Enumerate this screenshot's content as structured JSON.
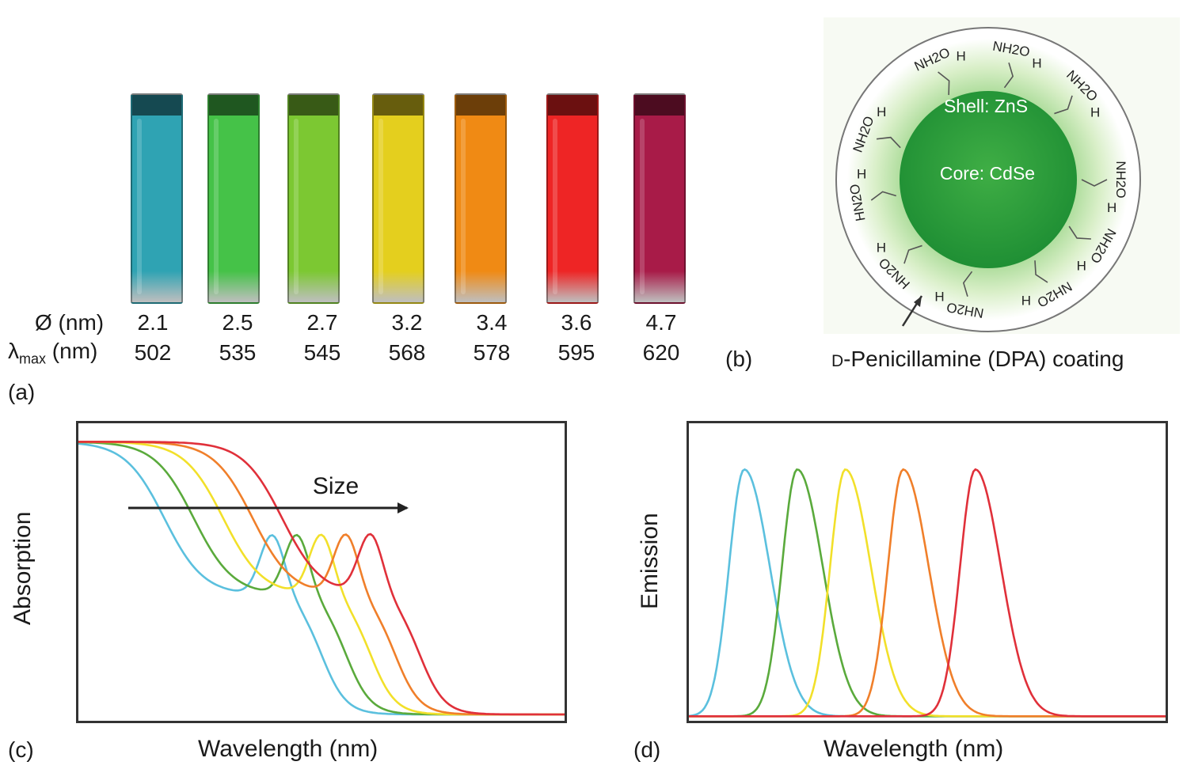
{
  "panels": {
    "a": {
      "letter": "(a)",
      "diameter_label": "Ø (nm)",
      "lambda_symbol": "λ",
      "lambda_sub": "max",
      "lambda_unit": " (nm)",
      "vials": [
        {
          "diameter": "2.1",
          "lambda": "502",
          "color": "#2fa3b3"
        },
        {
          "diameter": "2.5",
          "lambda": "535",
          "color": "#45c248"
        },
        {
          "diameter": "2.7",
          "lambda": "545",
          "color": "#7cc832"
        },
        {
          "diameter": "3.2",
          "lambda": "568",
          "color": "#e4cf1e"
        },
        {
          "diameter": "3.4",
          "lambda": "578",
          "color": "#f08a14"
        },
        {
          "diameter": "3.6",
          "lambda": "595",
          "color": "#ee2525"
        },
        {
          "diameter": "4.7",
          "lambda": "620",
          "color": "#a81b48"
        }
      ]
    },
    "b": {
      "letter": "(b)",
      "shell_label": "Shell: ZnS",
      "core_label": "Core: CdSe",
      "coating_prefix": "D",
      "coating_label": "-Penicillamine (DPA) coating",
      "ligand_labels": [
        "NH2O",
        "H",
        "NH2O",
        "H",
        "NH2O",
        "H",
        "NH2O",
        "H",
        "NH2O",
        "H",
        "HN2O",
        "H",
        "HN2O",
        "H",
        "NH2O",
        "H"
      ]
    },
    "c": {
      "letter": "(c)",
      "ylabel": "Absorption",
      "xlabel": "Wavelength (nm)",
      "arrow_label": "Size"
    },
    "d": {
      "letter": "(d)",
      "ylabel": "Emission",
      "xlabel": "Wavelength (nm)"
    }
  },
  "chart_data": [
    {
      "type": "line",
      "title": "",
      "xlabel": "Wavelength (nm)",
      "ylabel": "Absorption",
      "annotation": "Size",
      "series": [
        {
          "color": "#5bc0de",
          "peak": 0.4
        },
        {
          "color": "#5aaa3c",
          "peak": 0.45
        },
        {
          "color": "#f2e02a",
          "peak": 0.5
        },
        {
          "color": "#f07f2a",
          "peak": 0.55
        },
        {
          "color": "#e0303a",
          "peak": 0.6
        }
      ]
    },
    {
      "type": "line",
      "title": "",
      "xlabel": "Wavelength (nm)",
      "ylabel": "Emission",
      "series": [
        {
          "color": "#5bc0de",
          "peak": 0.12
        },
        {
          "color": "#5aaa3c",
          "peak": 0.23
        },
        {
          "color": "#f2e02a",
          "peak": 0.33
        },
        {
          "color": "#f07f2a",
          "peak": 0.45
        },
        {
          "color": "#e0303a",
          "peak": 0.6
        }
      ]
    }
  ]
}
